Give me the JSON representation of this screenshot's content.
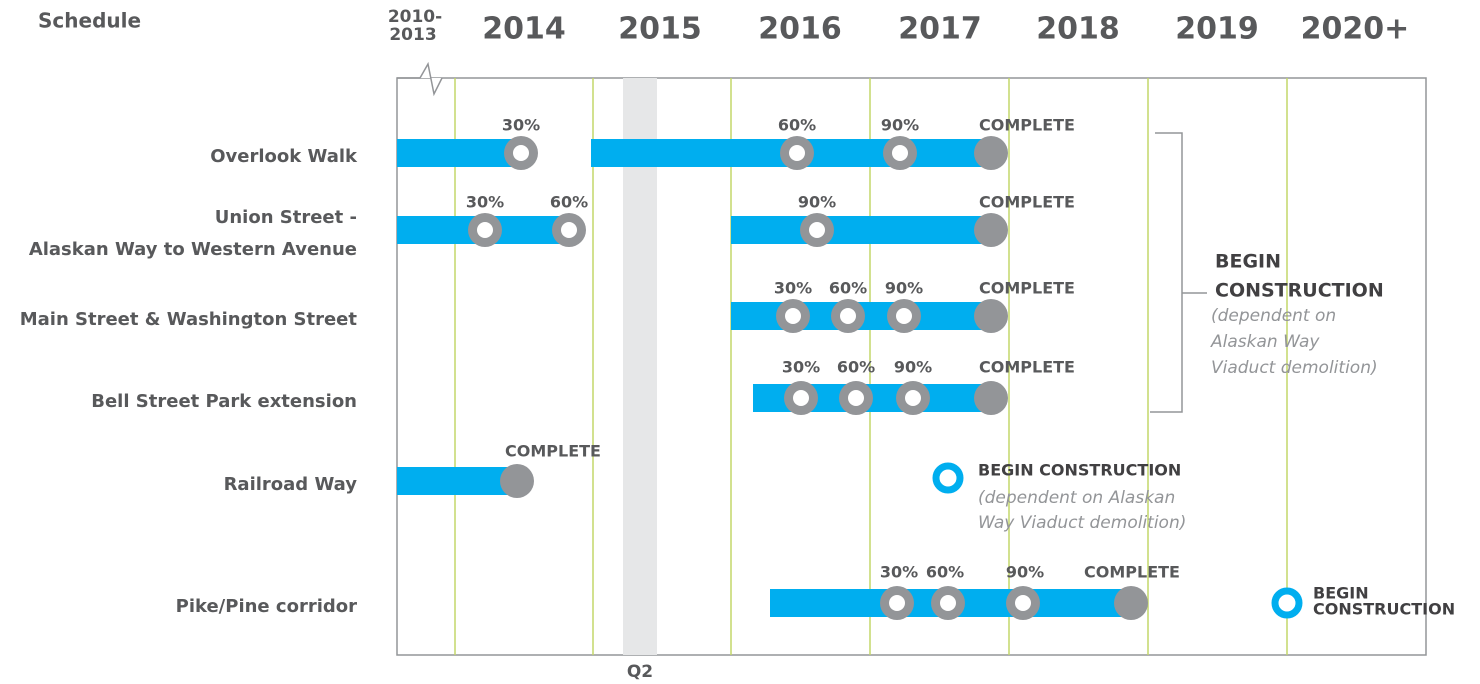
{
  "title": "Schedule",
  "years": [
    "2010-",
    "2013",
    "2014",
    "2015",
    "2016",
    "2017",
    "2018",
    "2019",
    "2020+"
  ],
  "quarter": "Q2",
  "rows": [
    {
      "label": [
        "Overlook Walk"
      ],
      "milestones": [
        "30%",
        "60%",
        "90%",
        "COMPLETE"
      ]
    },
    {
      "label": [
        "Union Street -",
        "Alaskan Way to Western Avenue"
      ],
      "milestones": [
        "30%",
        "60%",
        "90%",
        "COMPLETE"
      ]
    },
    {
      "label": [
        "Main Street & Washington  Street"
      ],
      "milestones": [
        "30%",
        "60%",
        "90%",
        "COMPLETE"
      ]
    },
    {
      "label": [
        "Bell Street Park extension"
      ],
      "milestones": [
        "30%",
        "60%",
        "90%",
        "COMPLETE"
      ]
    },
    {
      "label": [
        "Railroad Way"
      ],
      "milestones": [
        "COMPLETE"
      ]
    },
    {
      "label": [
        "Pike/Pine corridor"
      ],
      "milestones": [
        "30%",
        "60%",
        "90%",
        "COMPLETE"
      ]
    }
  ],
  "notes": {
    "bracket": {
      "title": [
        "BEGIN",
        "CONSTRUCTION"
      ],
      "detail": [
        "(dependent on",
        "Alaskan Way",
        "Viaduct demolition)"
      ]
    },
    "railroad": {
      "title": "BEGIN CONSTRUCTION",
      "detail": [
        "(dependent on Alaskan",
        "Way Viaduct demolition)"
      ]
    },
    "pike": {
      "title": [
        "BEGIN",
        "CONSTRUCTION"
      ]
    }
  }
}
